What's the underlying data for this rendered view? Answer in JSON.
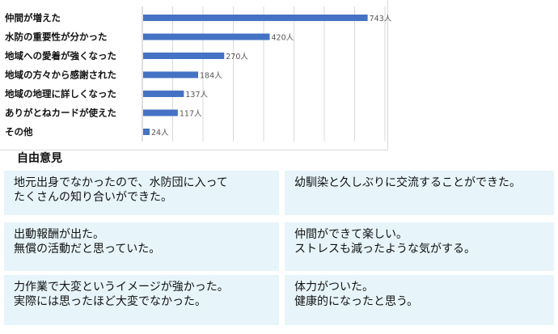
{
  "chart_data": {
    "type": "bar",
    "orientation": "horizontal",
    "categories": [
      "仲間が増えた",
      "水防の重要性が分かった",
      "地域への愛着が強くなった",
      "地域の方々から感謝された",
      "地域の地理に詳しくなった",
      "ありがとねカードが使えた",
      "その他"
    ],
    "values": [
      743,
      420,
      270,
      184,
      137,
      117,
      24
    ],
    "value_labels": [
      "743人",
      "420人",
      "270人",
      "184人",
      "137人",
      "117人",
      "24人"
    ],
    "xlim": [
      0,
      800
    ],
    "grid": true,
    "bar_color": "#4472c4",
    "title": "",
    "xlabel": "",
    "ylabel": ""
  },
  "opinions": {
    "title": "自由意見",
    "cards": [
      {
        "lines": [
          "地元出身でなかったので、水防団に入って",
          "たくさんの知り合いができた。"
        ]
      },
      {
        "lines": [
          "幼馴染と久しぶりに交流することができた。"
        ]
      },
      {
        "lines": [
          "出動報酬が出た。",
          "無償の活動だと思っていた。"
        ]
      },
      {
        "lines": [
          "仲間ができて楽しい。",
          "ストレスも減ったような気がする。"
        ]
      },
      {
        "lines": [
          "力作業で大変というイメージが強かった。",
          "実際には思ったほど大変でなかった。"
        ]
      },
      {
        "lines": [
          "体力がついた。",
          "健康的になったと思う。"
        ]
      }
    ],
    "card_color": "#e7f5fa"
  }
}
